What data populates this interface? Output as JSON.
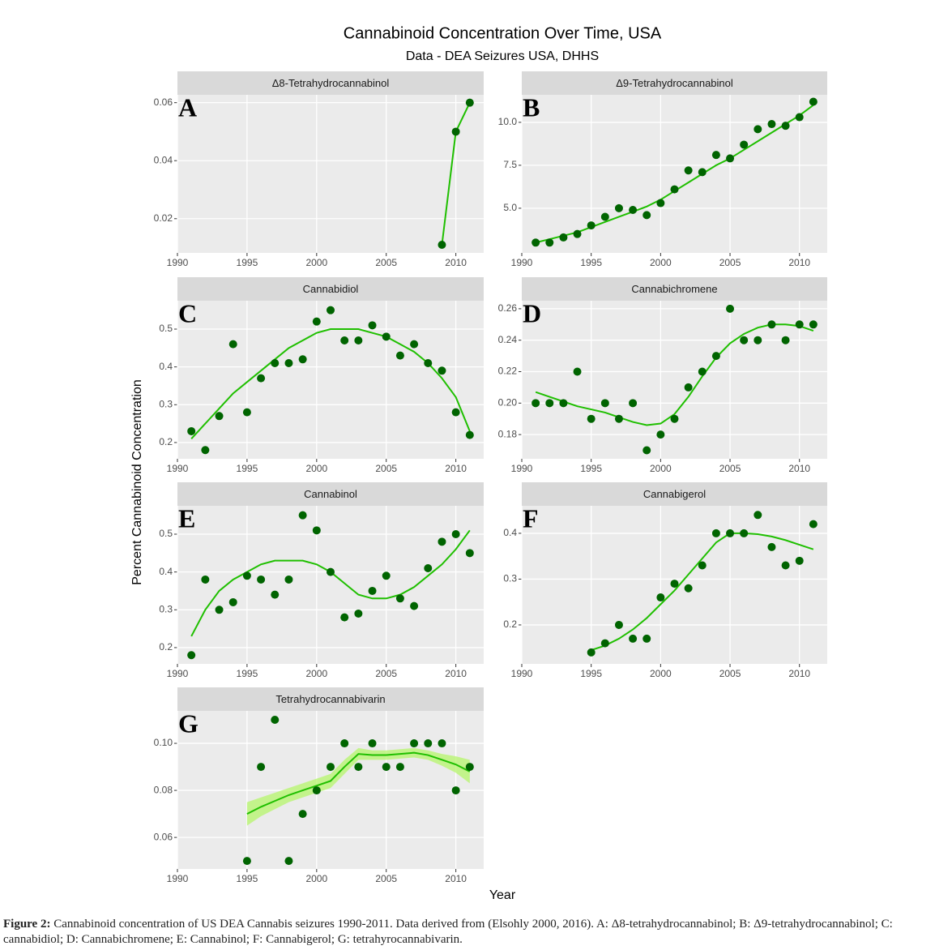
{
  "title": "Cannabinoid Concentration Over Time, USA",
  "subtitle": "Data - DEA Seizures USA, DHHS",
  "y_label": "Percent Cannabinoid Concentration",
  "x_label": "Year",
  "caption_label": "Figure 2:",
  "caption_text": "Cannabinoid concentration of US DEA Cannabis seizures 1990-2011.  Data derived from (Elsohly 2000, 2016). A: Δ8-tetrahydrocannabinol; B: Δ9-tetrahydrocannabinol; C: cannabidiol; D: Cannabichromene; E: Cannabinol; F: Cannabigerol; G: tetrahyrocannabivarin.",
  "colors": {
    "points": "#006400",
    "trend": "#1fbf00",
    "ribbon": "#b6f56b"
  },
  "chart_data": [
    {
      "type": "scatter",
      "title": "Δ8-Tetrahydrocannabinol",
      "letter": "A",
      "x": [
        2009,
        2010,
        2011
      ],
      "values": [
        0.011,
        0.05,
        0.06
      ],
      "trend": [
        0.011,
        0.05,
        0.06
      ],
      "xlim": [
        1990,
        2012
      ],
      "xticks": [
        1990,
        1995,
        2000,
        2005,
        2010
      ],
      "ylim": [
        0.0082,
        0.0627
      ],
      "yticks": [
        0.02,
        0.04,
        0.06
      ]
    },
    {
      "type": "scatter",
      "title": "Δ9-Tetrahydrocannabinol",
      "letter": "B",
      "x": [
        1991,
        1992,
        1993,
        1994,
        1995,
        1996,
        1997,
        1998,
        1999,
        2000,
        2001,
        2002,
        2003,
        2004,
        2005,
        2006,
        2007,
        2008,
        2009,
        2010,
        2011
      ],
      "values": [
        3.0,
        3.0,
        3.3,
        3.5,
        4.0,
        4.5,
        5.0,
        4.9,
        4.6,
        5.3,
        6.1,
        7.2,
        7.1,
        8.1,
        7.9,
        8.7,
        9.6,
        9.9,
        9.8,
        10.3,
        11.2
      ],
      "trend": [
        3.0,
        3.2,
        3.4,
        3.6,
        3.9,
        4.2,
        4.5,
        4.8,
        5.1,
        5.5,
        6.0,
        6.5,
        7.0,
        7.5,
        7.9,
        8.4,
        8.9,
        9.4,
        9.9,
        10.4,
        11.0
      ],
      "xlim": [
        1990,
        2012
      ],
      "xticks": [
        1990,
        1995,
        2000,
        2005,
        2010
      ],
      "ylim": [
        2.4,
        11.6
      ],
      "yticks": [
        {
          "value": 5,
          "label": "5.0"
        },
        {
          "value": 7.5,
          "label": "7.5"
        },
        {
          "value": 10,
          "label": "10.0"
        }
      ]
    },
    {
      "type": "scatter",
      "title": "Cannabidiol",
      "letter": "C",
      "x": [
        1991,
        1992,
        1993,
        1994,
        1995,
        1996,
        1997,
        1998,
        1999,
        2000,
        2001,
        2002,
        2003,
        2004,
        2005,
        2006,
        2007,
        2008,
        2009,
        2010,
        2011
      ],
      "values": [
        0.23,
        0.18,
        0.27,
        0.46,
        0.28,
        0.37,
        0.41,
        0.41,
        0.42,
        0.52,
        0.55,
        0.47,
        0.47,
        0.51,
        0.48,
        0.43,
        0.46,
        0.41,
        0.39,
        0.28,
        0.22
      ],
      "trend": [
        0.21,
        0.25,
        0.29,
        0.33,
        0.36,
        0.39,
        0.42,
        0.45,
        0.47,
        0.49,
        0.5,
        0.5,
        0.5,
        0.49,
        0.48,
        0.46,
        0.44,
        0.41,
        0.37,
        0.32,
        0.23
      ],
      "xlim": [
        1990,
        2012
      ],
      "xticks": [
        1990,
        1995,
        2000,
        2005,
        2010
      ],
      "ylim": [
        0.157,
        0.575
      ],
      "yticks": [
        0.2,
        0.3,
        0.4,
        0.5
      ]
    },
    {
      "type": "scatter",
      "title": "Cannabichromene",
      "letter": "D",
      "x": [
        1991,
        1992,
        1993,
        1994,
        1995,
        1996,
        1997,
        1998,
        1999,
        2000,
        2001,
        2002,
        2003,
        2004,
        2005,
        2006,
        2007,
        2008,
        2009,
        2010,
        2011
      ],
      "values": [
        0.2,
        0.2,
        0.2,
        0.22,
        0.19,
        0.2,
        0.19,
        0.2,
        0.17,
        0.18,
        0.19,
        0.21,
        0.22,
        0.23,
        0.26,
        0.24,
        0.24,
        0.25,
        0.24,
        0.25,
        0.25
      ],
      "trend": [
        0.207,
        0.204,
        0.201,
        0.198,
        0.196,
        0.194,
        0.191,
        0.188,
        0.186,
        0.187,
        0.193,
        0.204,
        0.217,
        0.229,
        0.238,
        0.244,
        0.248,
        0.25,
        0.25,
        0.249,
        0.246
      ],
      "xlim": [
        1990,
        2012
      ],
      "xticks": [
        1990,
        1995,
        2000,
        2005,
        2010
      ],
      "ylim": [
        0.1646,
        0.2651
      ],
      "yticks": [
        0.18,
        {
          "value": 0.2,
          "label": "0.20"
        },
        0.22,
        0.24,
        0.26
      ]
    },
    {
      "type": "scatter",
      "title": "Cannabinol",
      "letter": "E",
      "x": [
        1991,
        1992,
        1993,
        1994,
        1995,
        1996,
        1997,
        1998,
        1999,
        2000,
        2001,
        2002,
        2003,
        2004,
        2005,
        2006,
        2007,
        2008,
        2009,
        2010,
        2011
      ],
      "values": [
        0.18,
        0.38,
        0.3,
        0.32,
        0.39,
        0.38,
        0.34,
        0.38,
        0.55,
        0.51,
        0.4,
        0.28,
        0.29,
        0.35,
        0.39,
        0.33,
        0.31,
        0.41,
        0.48,
        0.5,
        0.45
      ],
      "trend": [
        0.23,
        0.3,
        0.35,
        0.38,
        0.4,
        0.42,
        0.43,
        0.43,
        0.43,
        0.42,
        0.4,
        0.37,
        0.34,
        0.33,
        0.33,
        0.34,
        0.36,
        0.39,
        0.42,
        0.46,
        0.51
      ],
      "xlim": [
        1990,
        2012
      ],
      "xticks": [
        1990,
        1995,
        2000,
        2005,
        2010
      ],
      "ylim": [
        0.157,
        0.575
      ],
      "yticks": [
        0.2,
        0.3,
        0.4,
        0.5
      ]
    },
    {
      "type": "scatter",
      "title": "Cannabigerol",
      "letter": "F",
      "x": [
        1995,
        1996,
        1997,
        1998,
        1999,
        2000,
        2001,
        2002,
        2003,
        2004,
        2005,
        2006,
        2007,
        2008,
        2009,
        2010,
        2011
      ],
      "values": [
        0.14,
        0.16,
        0.2,
        0.17,
        0.17,
        0.26,
        0.29,
        0.28,
        0.33,
        0.4,
        0.4,
        0.4,
        0.44,
        0.37,
        0.33,
        0.34,
        0.42
      ],
      "trend": [
        0.145,
        0.155,
        0.17,
        0.19,
        0.215,
        0.245,
        0.275,
        0.31,
        0.345,
        0.38,
        0.4,
        0.4,
        0.398,
        0.393,
        0.385,
        0.375,
        0.365
      ],
      "xlim": [
        1990,
        2012
      ],
      "xticks": [
        1990,
        1995,
        2000,
        2005,
        2010
      ],
      "ylim": [
        0.115,
        0.46
      ],
      "yticks": [
        0.2,
        0.3,
        0.4
      ]
    },
    {
      "type": "scatter",
      "title": "Tetrahydrocannabivarin",
      "letter": "G",
      "x": [
        1995,
        1996,
        1997,
        1998,
        1999,
        2000,
        2001,
        2002,
        2003,
        2004,
        2005,
        2006,
        2007,
        2008,
        2009,
        2010,
        2011
      ],
      "values": [
        0.05,
        0.09,
        0.11,
        0.05,
        0.07,
        0.08,
        0.09,
        0.1,
        0.09,
        0.1,
        0.09,
        0.09,
        0.1,
        0.1,
        0.1,
        0.08,
        0.09
      ],
      "trend": [
        0.07,
        0.073,
        0.0755,
        0.078,
        0.08,
        0.082,
        0.084,
        0.09,
        0.0955,
        0.095,
        0.095,
        0.0955,
        0.096,
        0.095,
        0.093,
        0.091,
        0.088
      ],
      "trend_lower": [
        0.065,
        0.069,
        0.072,
        0.075,
        0.077,
        0.079,
        0.081,
        0.087,
        0.093,
        0.093,
        0.093,
        0.0935,
        0.094,
        0.093,
        0.0905,
        0.0875,
        0.083
      ],
      "trend_upper": [
        0.075,
        0.077,
        0.079,
        0.081,
        0.083,
        0.085,
        0.087,
        0.093,
        0.098,
        0.097,
        0.097,
        0.0975,
        0.098,
        0.097,
        0.0955,
        0.0945,
        0.093
      ],
      "xlim": [
        1990,
        2012
      ],
      "xticks": [
        1990,
        1995,
        2000,
        2005,
        2010
      ],
      "ylim": [
        0.0466,
        0.1138
      ],
      "yticks": [
        0.06,
        0.08,
        {
          "value": 0.1,
          "label": "0.10"
        }
      ]
    }
  ]
}
